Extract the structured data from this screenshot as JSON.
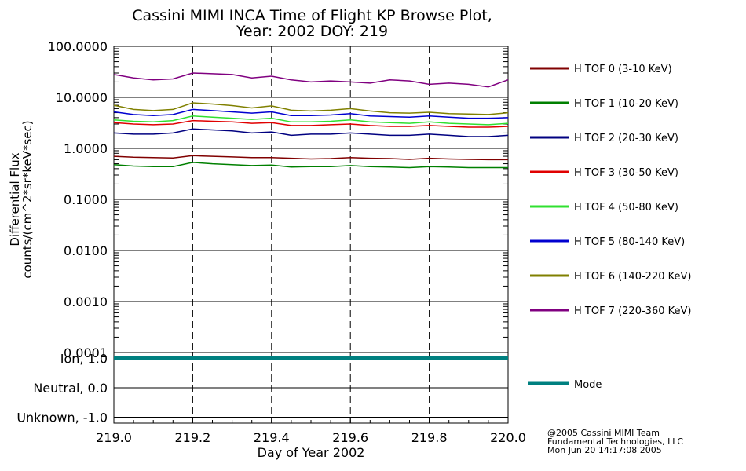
{
  "title_line1": "Cassini MIMI INCA Time of Flight KP Browse Plot,",
  "title_line2": "Year: 2002 DOY: 219",
  "footer": {
    "line1": "@2005 Cassini MIMI Team",
    "line2": "Fundamental Technologies, LLC",
    "line3": "Mon Jun 20 14:17:08 2005"
  },
  "chart_data": [
    {
      "type": "line",
      "yscale": "log",
      "ylabel_line1": "Differential Flux",
      "ylabel_line2": "counts/(cm^2*sr*keV*sec)",
      "xlim": [
        219.0,
        220.0
      ],
      "ylim": [
        0.0001,
        100.0
      ],
      "y_ticks": [
        0.0001,
        0.001,
        0.01,
        0.1,
        1.0,
        10.0,
        100.0
      ],
      "y_tick_labels": [
        "0.0001",
        "0.0010",
        "0.0100",
        "0.1000",
        "1.0000",
        "10.0000",
        "100.0000"
      ],
      "dashed_vertical_lines_at": [
        219.2,
        219.4,
        219.6,
        219.8
      ],
      "x": [
        219.0,
        219.05,
        219.1,
        219.15,
        219.2,
        219.25,
        219.3,
        219.35,
        219.4,
        219.45,
        219.5,
        219.55,
        219.6,
        219.65,
        219.7,
        219.75,
        219.8,
        219.85,
        219.9,
        219.95,
        220.0
      ],
      "series": [
        {
          "name": "H TOF 0 (3-10 KeV)",
          "color": "#800000",
          "values": [
            0.7,
            0.67,
            0.66,
            0.65,
            0.72,
            0.7,
            0.68,
            0.66,
            0.66,
            0.64,
            0.62,
            0.63,
            0.66,
            0.64,
            0.63,
            0.61,
            0.64,
            0.62,
            0.61,
            0.6,
            0.6
          ]
        },
        {
          "name": "H TOF 1 (10-20 KeV)",
          "color": "#008000",
          "values": [
            0.48,
            0.45,
            0.44,
            0.44,
            0.53,
            0.5,
            0.48,
            0.46,
            0.47,
            0.43,
            0.44,
            0.44,
            0.46,
            0.44,
            0.43,
            0.42,
            0.44,
            0.43,
            0.42,
            0.42,
            0.42
          ]
        },
        {
          "name": "H TOF 2 (20-30 KeV)",
          "color": "#000080",
          "values": [
            2.0,
            1.9,
            1.9,
            2.0,
            2.4,
            2.3,
            2.2,
            2.0,
            2.1,
            1.8,
            1.9,
            1.9,
            2.0,
            1.9,
            1.8,
            1.8,
            1.9,
            1.8,
            1.7,
            1.7,
            1.8
          ]
        },
        {
          "name": "H TOF 3 (30-50 KeV)",
          "color": "#e00000",
          "values": [
            3.2,
            3.0,
            2.9,
            3.0,
            3.5,
            3.4,
            3.3,
            3.1,
            3.2,
            2.8,
            2.8,
            2.9,
            3.0,
            2.8,
            2.7,
            2.7,
            2.8,
            2.7,
            2.6,
            2.6,
            2.7
          ]
        },
        {
          "name": "H TOF 4 (50-80 KeV)",
          "color": "#30e030",
          "values": [
            3.6,
            3.4,
            3.3,
            3.5,
            4.3,
            4.1,
            3.9,
            3.7,
            3.9,
            3.3,
            3.3,
            3.4,
            3.6,
            3.3,
            3.2,
            3.1,
            3.3,
            3.1,
            3.0,
            2.9,
            3.1
          ]
        },
        {
          "name": "H TOF 5 (80-140 KeV)",
          "color": "#0000d0",
          "values": [
            5.2,
            4.6,
            4.4,
            4.6,
            5.8,
            5.5,
            5.2,
            4.9,
            5.2,
            4.4,
            4.4,
            4.5,
            4.8,
            4.3,
            4.2,
            4.1,
            4.3,
            4.1,
            3.9,
            3.9,
            4.0
          ]
        },
        {
          "name": "H TOF 6 (140-220 KeV)",
          "color": "#808000",
          "values": [
            7.0,
            5.8,
            5.5,
            5.8,
            7.8,
            7.4,
            6.9,
            6.2,
            6.8,
            5.6,
            5.4,
            5.6,
            6.0,
            5.4,
            5.0,
            4.9,
            5.1,
            4.8,
            4.7,
            4.6,
            5.0
          ]
        },
        {
          "name": "H TOF 7 (220-360 KeV)",
          "color": "#800080",
          "values": [
            28,
            24,
            22,
            23,
            30,
            29,
            28,
            24,
            26,
            22,
            20,
            21,
            20,
            19,
            22,
            21,
            18,
            19,
            18,
            16,
            22
          ]
        }
      ]
    },
    {
      "type": "line",
      "ylabels": [
        "Ion, 1.0",
        "Neutral, 0.0",
        "Unknown, -1.0"
      ],
      "y_ticks": [
        1.0,
        0.0,
        -1.0
      ],
      "ylim": [
        -1.2,
        1.2
      ],
      "xlim": [
        219.0,
        220.0
      ],
      "dashed_vertical_lines_at": [
        219.2,
        219.4,
        219.6,
        219.8
      ],
      "series": [
        {
          "name": "Mode",
          "color": "#008080",
          "x": [
            219.0,
            220.0
          ],
          "values": [
            1.0,
            1.0
          ]
        }
      ],
      "xlabel": "Day of Year 2002",
      "x_ticks": [
        219.0,
        219.2,
        219.4,
        219.6,
        219.8,
        220.0
      ],
      "x_tick_labels": [
        "219.0",
        "219.2",
        "219.4",
        "219.6",
        "219.8",
        "220.0"
      ]
    }
  ]
}
